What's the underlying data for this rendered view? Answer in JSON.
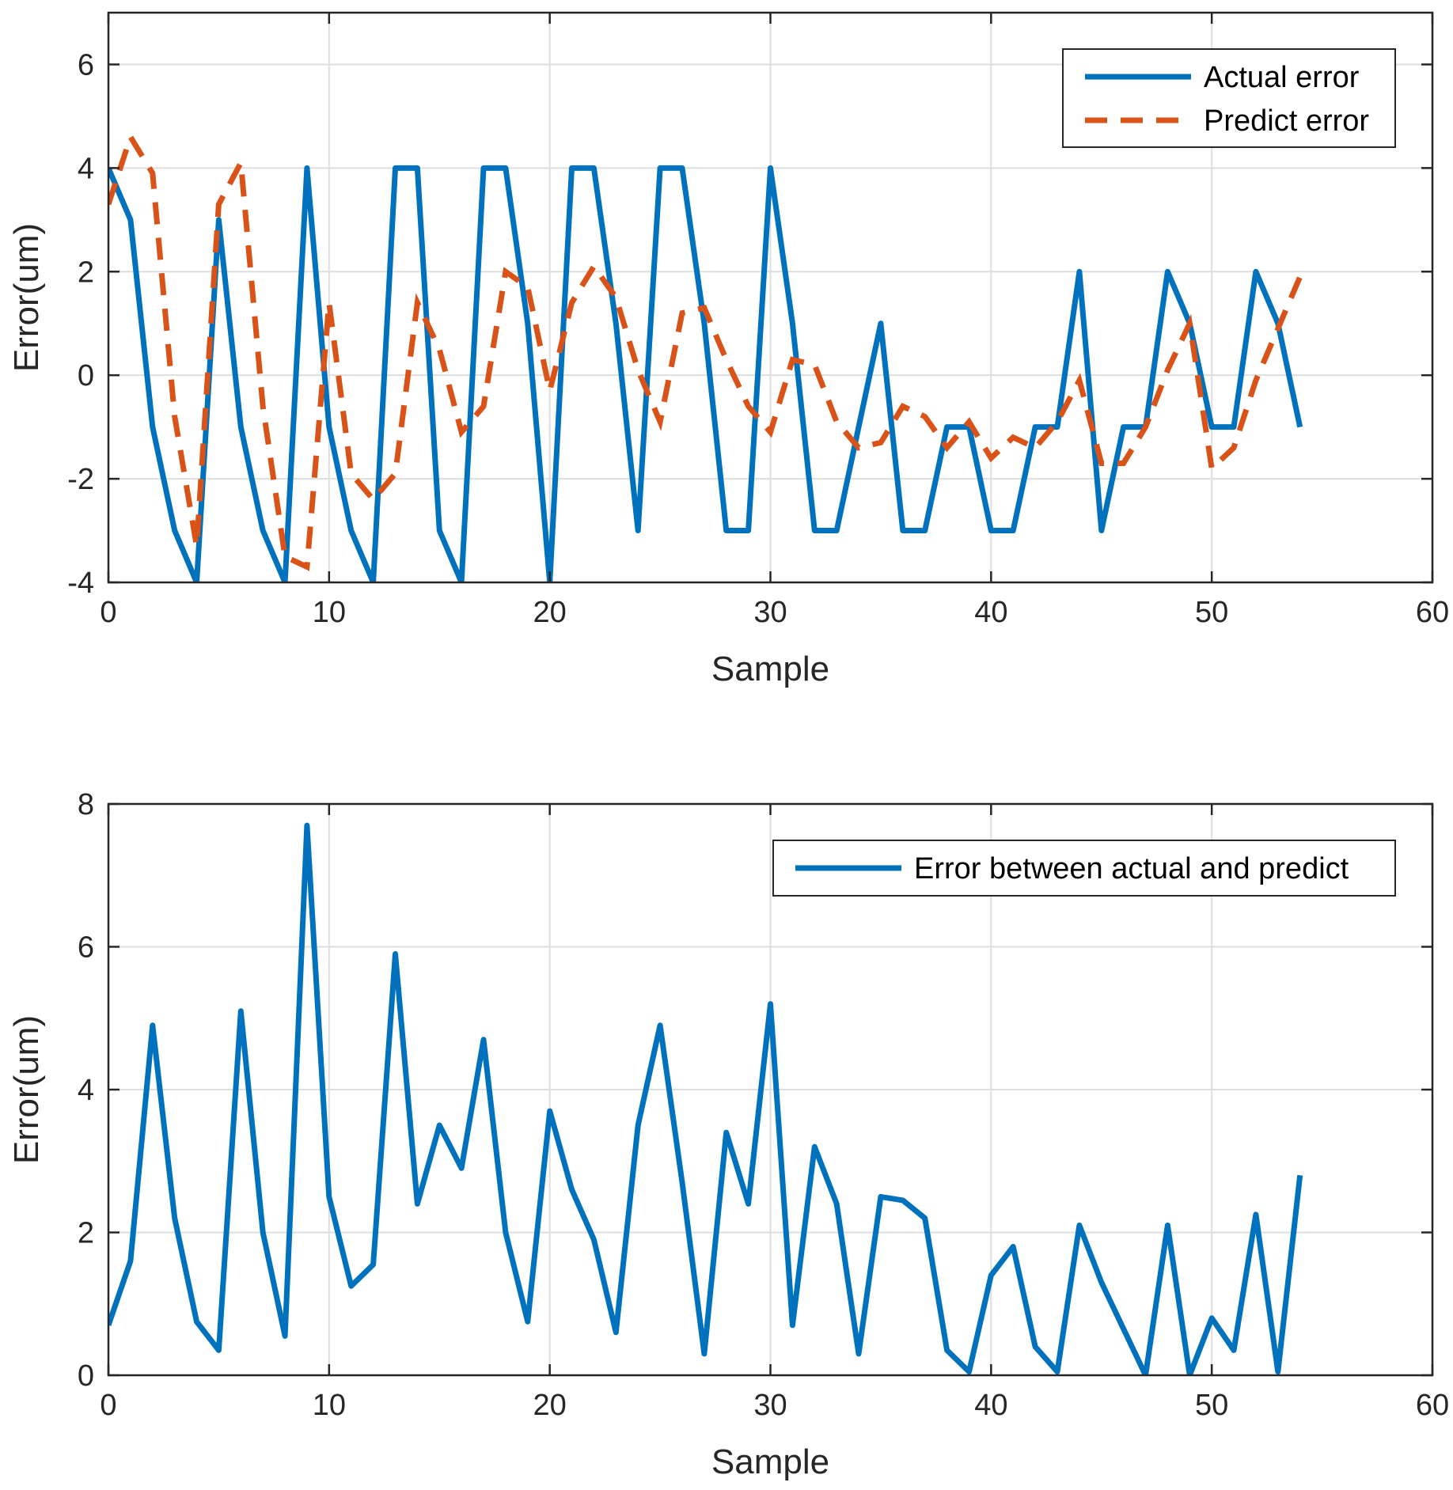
{
  "chart_data": [
    {
      "type": "line",
      "title": "",
      "xlabel": "Sample",
      "ylabel": "Error(um)",
      "xlim": [
        0,
        60
      ],
      "ylim": [
        -4,
        7
      ],
      "xticks": [
        0,
        10,
        20,
        30,
        40,
        50,
        60
      ],
      "yticks": [
        -4,
        -2,
        0,
        2,
        4,
        6
      ],
      "grid": true,
      "legend_position": "top-right",
      "colors": {
        "actual": "#0072BD",
        "predict": "#D95319"
      },
      "series": [
        {
          "name": "Actual error",
          "style": "solid",
          "x": [
            0,
            1,
            2,
            3,
            4,
            5,
            6,
            7,
            8,
            9,
            10,
            11,
            12,
            13,
            14,
            15,
            16,
            17,
            18,
            19,
            20,
            21,
            22,
            23,
            24,
            25,
            26,
            27,
            28,
            29,
            30,
            31,
            32,
            33,
            34,
            35,
            36,
            37,
            38,
            39,
            40,
            41,
            42,
            43,
            44,
            45,
            46,
            47,
            48,
            49,
            50,
            51,
            52,
            53,
            54
          ],
          "values": [
            4,
            3,
            -1,
            -3,
            -4,
            3,
            -1,
            -3,
            -4,
            4,
            -1,
            -3,
            -4,
            4,
            4,
            -3,
            -4,
            4,
            4,
            1,
            -4,
            4,
            4,
            1,
            -3,
            4,
            4,
            1,
            -3,
            -3,
            4,
            1,
            -3,
            -3,
            -1,
            1,
            -3,
            -3,
            -1,
            -1,
            -3,
            -3,
            -1,
            -1,
            2,
            -3,
            -1,
            -1,
            2,
            1,
            -1,
            -1,
            2,
            1,
            -1
          ]
        },
        {
          "name": "Predict error",
          "style": "dashed",
          "x": [
            0,
            1,
            2,
            3,
            4,
            5,
            6,
            7,
            8,
            9,
            10,
            11,
            12,
            13,
            14,
            15,
            16,
            17,
            18,
            19,
            20,
            21,
            22,
            23,
            24,
            25,
            26,
            27,
            28,
            29,
            30,
            31,
            32,
            33,
            34,
            35,
            36,
            37,
            38,
            39,
            40,
            41,
            42,
            43,
            44,
            45,
            46,
            47,
            48,
            49,
            50,
            51,
            52,
            53,
            54
          ],
          "values": [
            3.3,
            4.6,
            3.9,
            -0.8,
            -3.3,
            3.3,
            4.1,
            -0.6,
            -3.5,
            -3.7,
            1.4,
            -1.9,
            -2.4,
            -1.9,
            1.4,
            0.5,
            -1.1,
            -0.6,
            2.0,
            1.7,
            -0.3,
            1.4,
            2.1,
            1.5,
            0.1,
            -0.9,
            1.2,
            1.3,
            0.3,
            -0.6,
            -1.1,
            0.3,
            0.2,
            -0.9,
            -1.4,
            -1.3,
            -0.6,
            -0.8,
            -1.4,
            -0.9,
            -1.6,
            -1.2,
            -1.4,
            -0.9,
            -0.1,
            -1.7,
            -1.7,
            -1.0,
            0.1,
            1.0,
            -1.8,
            -1.4,
            -0.1,
            0.9,
            1.9
          ]
        }
      ]
    },
    {
      "type": "line",
      "title": "",
      "xlabel": "Sample",
      "ylabel": "Error(um)",
      "xlim": [
        0,
        60
      ],
      "ylim": [
        0,
        8
      ],
      "xticks": [
        0,
        10,
        20,
        30,
        40,
        50,
        60
      ],
      "yticks": [
        0,
        2,
        4,
        6,
        8
      ],
      "grid": true,
      "legend_position": "top-right",
      "colors": {
        "diff": "#0072BD"
      },
      "series": [
        {
          "name": "Error between actual and predict",
          "style": "solid",
          "x": [
            0,
            1,
            2,
            3,
            4,
            5,
            6,
            7,
            8,
            9,
            10,
            11,
            12,
            13,
            14,
            15,
            16,
            17,
            18,
            19,
            20,
            21,
            22,
            23,
            24,
            25,
            26,
            27,
            28,
            29,
            30,
            31,
            32,
            33,
            34,
            35,
            36,
            37,
            38,
            39,
            40,
            41,
            42,
            43,
            44,
            45,
            46,
            47,
            48,
            49,
            50,
            51,
            52,
            53,
            54
          ],
          "values": [
            0.7,
            1.6,
            4.9,
            2.2,
            0.75,
            0.35,
            5.1,
            2.0,
            0.55,
            7.7,
            2.5,
            1.25,
            1.55,
            5.9,
            2.4,
            3.5,
            2.9,
            4.7,
            2.0,
            0.75,
            3.7,
            2.6,
            1.9,
            0.6,
            3.5,
            4.9,
            2.7,
            0.3,
            3.4,
            2.4,
            5.2,
            0.7,
            3.2,
            2.4,
            0.3,
            2.5,
            2.45,
            2.2,
            0.35,
            0.05,
            1.4,
            1.8,
            0.4,
            0.05,
            2.1,
            1.3,
            0.65,
            0.0,
            2.1,
            0.0,
            0.8,
            0.35,
            2.25,
            0.05,
            2.8
          ]
        }
      ]
    }
  ]
}
